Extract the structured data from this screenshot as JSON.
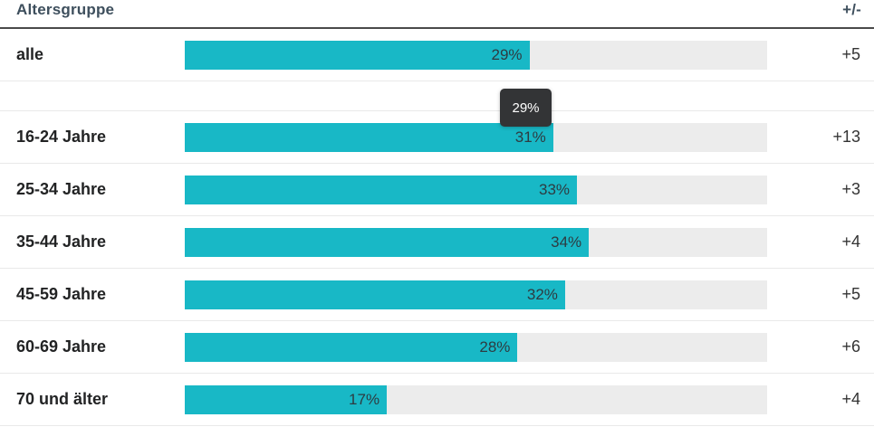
{
  "header": {
    "title": "Altersgruppe",
    "delta_label": "+/-"
  },
  "tooltip": {
    "value": "29%",
    "visible": true
  },
  "colors": {
    "bar": "#18b8c6",
    "track": "#ececec",
    "header_text": "#3e4f5d",
    "tooltip_bg": "#333436"
  },
  "chart_data": {
    "type": "bar",
    "orientation": "horizontal",
    "title": "",
    "xlabel": "",
    "ylabel": "Altersgruppe",
    "xlim": [
      0,
      49
    ],
    "value_suffix": "%",
    "categories": [
      "alle",
      "16-24 Jahre",
      "25-34 Jahre",
      "35-44 Jahre",
      "45-59 Jahre",
      "60-69 Jahre",
      "70 und älter"
    ],
    "values": [
      29,
      31,
      33,
      34,
      32,
      28,
      17
    ],
    "deltas": [
      "+5",
      "+13",
      "+3",
      "+4",
      "+5",
      "+6",
      "+4"
    ],
    "delta_column_header": "+/-",
    "spacer_after_index": 0,
    "grid": false,
    "legend": false
  }
}
